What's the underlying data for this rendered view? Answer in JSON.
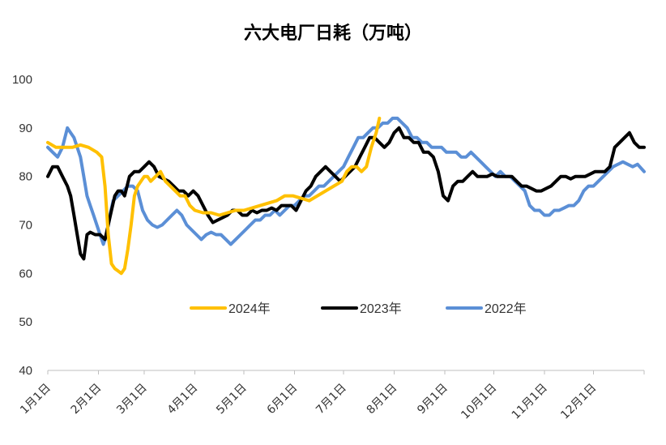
{
  "chart_data": {
    "type": "line",
    "title": "六大电厂日耗（万吨）",
    "xlabel": "",
    "ylabel": "",
    "ylim": [
      40,
      100
    ],
    "yticks": [
      "40",
      "50",
      "60",
      "70",
      "80",
      "90",
      "100"
    ],
    "x_tick_labels": [
      "1月1日",
      "2月1日",
      "3月1日",
      "4月1日",
      "5月1日",
      "6月1日",
      "7月1日",
      "8月1日",
      "9月1日",
      "10月1日",
      "11月1日",
      "12月1日"
    ],
    "x_unit": "day_of_year",
    "xlim": [
      0,
      365
    ],
    "x_tick_positions": [
      0,
      31,
      59,
      90,
      120,
      151,
      181,
      212,
      243,
      273,
      304,
      334
    ],
    "legend_position": "bottom-center",
    "grid": false,
    "series": [
      {
        "name": "2024年",
        "color": "#FFC000",
        "x": [
          0,
          5,
          10,
          15,
          20,
          25,
          30,
          33,
          35,
          37,
          39,
          41,
          43,
          45,
          47,
          49,
          51,
          53,
          55,
          57,
          59,
          61,
          63,
          66,
          69,
          72,
          75,
          78,
          81,
          84,
          87,
          90,
          95,
          100,
          105,
          110,
          115,
          120,
          125,
          130,
          135,
          140,
          145,
          150,
          155,
          160,
          165,
          170,
          175,
          180,
          183,
          186,
          189,
          192,
          195,
          198,
          201,
          203
        ],
        "y": [
          87,
          86,
          86,
          86,
          86.5,
          86,
          85,
          84,
          78,
          68,
          62,
          61,
          60.5,
          60,
          61,
          65,
          70,
          76,
          78,
          79,
          80,
          80,
          79,
          80,
          81,
          79,
          78,
          77,
          76,
          76,
          74,
          73,
          72.5,
          72.5,
          72,
          72.5,
          73,
          73,
          73.5,
          74,
          74.5,
          75,
          76,
          76,
          75.5,
          75,
          76,
          77,
          78,
          79,
          81,
          82,
          82,
          81,
          82,
          86,
          89,
          92
        ]
      },
      {
        "name": "2023年",
        "color": "#000000",
        "x": [
          0,
          3,
          6,
          9,
          12,
          14,
          16,
          18,
          20,
          22,
          24,
          26,
          29,
          32,
          35,
          37,
          39,
          41,
          43,
          45,
          47,
          50,
          53,
          56,
          59,
          62,
          65,
          68,
          71,
          74,
          77,
          80,
          83,
          86,
          89,
          92,
          95,
          98,
          101,
          104,
          107,
          110,
          113,
          116,
          119,
          122,
          125,
          128,
          131,
          134,
          137,
          140,
          143,
          146,
          149,
          152,
          155,
          158,
          161,
          164,
          167,
          170,
          173,
          176,
          179,
          182,
          185,
          188,
          191,
          194,
          197,
          200,
          203,
          206,
          209,
          212,
          215,
          218,
          221,
          224,
          227,
          230,
          233,
          236,
          239,
          242,
          245,
          248,
          251,
          254,
          257,
          260,
          263,
          266,
          269,
          272,
          275,
          278,
          281,
          284,
          287,
          290,
          293,
          296,
          299,
          302,
          305,
          308,
          311,
          314,
          317,
          320,
          323,
          326,
          329,
          332,
          335,
          338,
          341,
          344,
          347,
          350,
          353,
          356,
          359,
          362,
          365
        ],
        "y": [
          80,
          82,
          82,
          80,
          78,
          76,
          72,
          68,
          64,
          63,
          68,
          68.5,
          68,
          68,
          67,
          70,
          73,
          76,
          77,
          77,
          76,
          80,
          81,
          81,
          82,
          83,
          82,
          80,
          79.5,
          79,
          78,
          77,
          77,
          76,
          77,
          76,
          74,
          72,
          70.5,
          71,
          71.5,
          72,
          73,
          73,
          72,
          72,
          73,
          72.5,
          73,
          73,
          73.5,
          73,
          74,
          74,
          74,
          73,
          75,
          77,
          78,
          80,
          81,
          82,
          81,
          80,
          79,
          80,
          81,
          82,
          84,
          86,
          88,
          88,
          87,
          86,
          87,
          89,
          90,
          88,
          88,
          87,
          87,
          85,
          85,
          84,
          81,
          76,
          75,
          78,
          79,
          79,
          80,
          81,
          80,
          80,
          80,
          80.5,
          80,
          80,
          80,
          80,
          79,
          78,
          78,
          77.5,
          77,
          77,
          77.5,
          78,
          79,
          80,
          80,
          79.5,
          80,
          80,
          80,
          80.5,
          81,
          81,
          81,
          82,
          86,
          87,
          88,
          89,
          87,
          86,
          86
        ]
      },
      {
        "name": "2022年",
        "color": "#5B8FD6",
        "x": [
          0,
          3,
          6,
          9,
          12,
          14,
          16,
          18,
          20,
          22,
          24,
          26,
          28,
          30,
          32,
          34,
          36,
          38,
          40,
          43,
          46,
          49,
          52,
          55,
          58,
          61,
          64,
          67,
          70,
          73,
          76,
          79,
          82,
          85,
          88,
          91,
          94,
          97,
          100,
          103,
          106,
          109,
          112,
          115,
          118,
          121,
          124,
          127,
          130,
          133,
          136,
          139,
          142,
          145,
          148,
          151,
          154,
          157,
          160,
          163,
          166,
          169,
          172,
          175,
          178,
          181,
          184,
          187,
          190,
          193,
          196,
          199,
          202,
          205,
          208,
          211,
          214,
          217,
          220,
          223,
          226,
          229,
          232,
          235,
          238,
          241,
          244,
          247,
          250,
          253,
          256,
          259,
          262,
          265,
          268,
          271,
          274,
          277,
          280,
          283,
          286,
          289,
          292,
          295,
          298,
          301,
          304,
          307,
          310,
          313,
          316,
          319,
          322,
          325,
          328,
          331,
          334,
          337,
          340,
          343,
          346,
          349,
          352,
          355,
          358,
          361,
          365
        ],
        "y": [
          86,
          85,
          84,
          86,
          90,
          89,
          88,
          86,
          84,
          80,
          76,
          74,
          72,
          70,
          68,
          66,
          68,
          72,
          75,
          76,
          77,
          78,
          78,
          77,
          73,
          71,
          70,
          69.5,
          70,
          71,
          72,
          73,
          72,
          70,
          69,
          68,
          67,
          68,
          68.5,
          68,
          68,
          67,
          66,
          67,
          68,
          69,
          70,
          71,
          71,
          72,
          72,
          73,
          72,
          73,
          74,
          74,
          75,
          76,
          76,
          77,
          78,
          78,
          79,
          80,
          81,
          82,
          84,
          86,
          88,
          88,
          89,
          90,
          90,
          91,
          91,
          92,
          92,
          91,
          90,
          88,
          88,
          87,
          87,
          86,
          86,
          86,
          85,
          85,
          85,
          84,
          84,
          85,
          84,
          83,
          82,
          81,
          80,
          81,
          80,
          80,
          79,
          78,
          77,
          74,
          73,
          73,
          72,
          72,
          73,
          73,
          73.5,
          74,
          74,
          75,
          77,
          78,
          78,
          79,
          80,
          81,
          82,
          82.5,
          83,
          82.5,
          82,
          82.5,
          81
        ]
      }
    ]
  }
}
